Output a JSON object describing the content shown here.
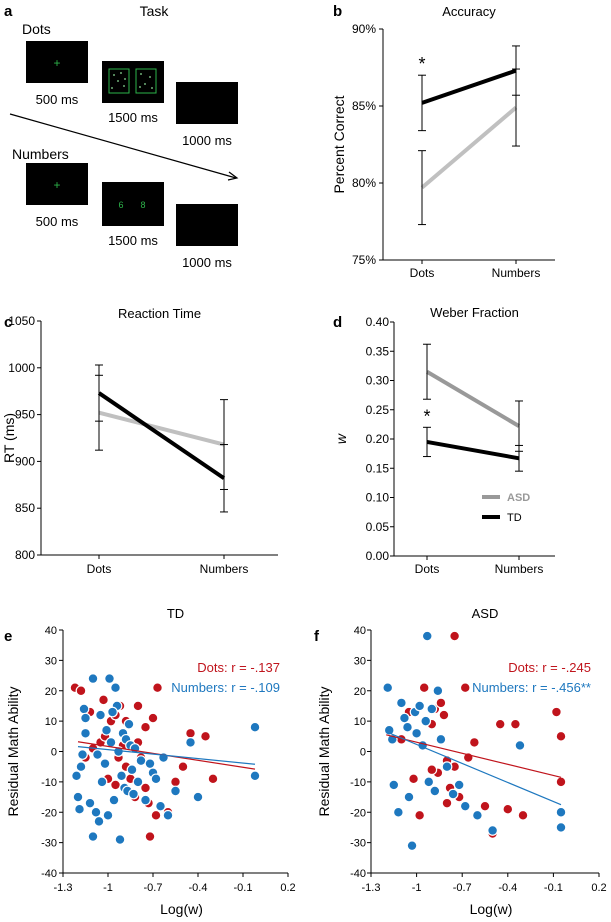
{
  "colors": {
    "td": "#000000",
    "asd": "#c0c0c0",
    "dots": "#c0141c",
    "numbers": "#1e78bf",
    "screen": "#000000",
    "stim": "#2db34a"
  },
  "panel_a": {
    "letter": "a",
    "title": "Task",
    "dots_label": "Dots",
    "numbers_label": "Numbers",
    "durations": [
      "500 ms",
      "1500 ms",
      "1000 ms"
    ],
    "fixation": "+",
    "number_stimulus": [
      "6",
      "8"
    ]
  },
  "chart_data": [
    {
      "id": "b",
      "letter": "b",
      "type": "line",
      "title": "Accuracy",
      "ylabel": "Percent Correct",
      "categories": [
        "Dots",
        "Numbers"
      ],
      "ylim": [
        75,
        90
      ],
      "yticks": [
        "75%",
        "80%",
        "85%",
        "90%"
      ],
      "series": [
        {
          "name": "TD",
          "color": "#000000",
          "values": [
            85.2,
            87.3
          ],
          "err": [
            1.8,
            1.6
          ]
        },
        {
          "name": "ASD",
          "color": "#c0c0c0",
          "values": [
            79.7,
            84.9
          ],
          "err": [
            2.4,
            2.5
          ]
        }
      ],
      "annotation": "*"
    },
    {
      "id": "c",
      "letter": "c",
      "type": "line",
      "title": "Reaction Time",
      "ylabel": "RT (ms)",
      "categories": [
        "Dots",
        "Numbers"
      ],
      "ylim": [
        800,
        1050
      ],
      "yticks": [
        "800",
        "850",
        "900",
        "950",
        "1000",
        "1050"
      ],
      "series": [
        {
          "name": "ASD",
          "color": "#c0c0c0",
          "values": [
            952,
            918
          ],
          "err": [
            40,
            48
          ]
        },
        {
          "name": "TD",
          "color": "#000000",
          "values": [
            973,
            882
          ],
          "err": [
            30,
            36
          ]
        }
      ]
    },
    {
      "id": "d",
      "letter": "d",
      "type": "line",
      "title": "Weber Fraction",
      "ylabel": "w",
      "categories": [
        "Dots",
        "Numbers"
      ],
      "ylim": [
        0,
        0.4
      ],
      "yticks": [
        "0.00",
        "0.05",
        "0.10",
        "0.15",
        "0.20",
        "0.25",
        "0.30",
        "0.35",
        "0.40"
      ],
      "series": [
        {
          "name": "ASD",
          "color": "#999999",
          "values": [
            0.315,
            0.222
          ],
          "err": [
            0.047,
            0.043
          ]
        },
        {
          "name": "TD",
          "color": "#000000",
          "values": [
            0.195,
            0.167
          ],
          "err": [
            0.025,
            0.022
          ]
        }
      ],
      "annotation": "*",
      "legend": [
        "ASD",
        "TD"
      ]
    },
    {
      "id": "e",
      "letter": "e",
      "type": "scatter",
      "title": "TD",
      "xlabel": "Log(w)",
      "ylabel": "Residual Math Ability",
      "xlim": [
        -1.3,
        0.2
      ],
      "ylim": [
        -40,
        40
      ],
      "xticks": [
        "-1.3",
        "-1",
        "-0.7",
        "-0.4",
        "-0.1",
        "0.2"
      ],
      "yticks": [
        "-40",
        "-30",
        "-20",
        "-10",
        "0",
        "10",
        "20",
        "30",
        "40"
      ],
      "stat_dots": "Dots: r = -.137",
      "stat_numbers": "Numbers: r = -.109",
      "fit_dots": [
        [
          -1.2,
          3.2
        ],
        [
          -0.02,
          -5.8
        ]
      ],
      "fit_numbers": [
        [
          -1.2,
          1.6
        ],
        [
          -0.02,
          -4.2
        ]
      ],
      "dots": [
        [
          -1.22,
          21
        ],
        [
          -1.18,
          20
        ],
        [
          -1.12,
          13
        ],
        [
          -1.15,
          -2
        ],
        [
          -1.1,
          1
        ],
        [
          -1.05,
          3
        ],
        [
          -1.02,
          5
        ],
        [
          -1.0,
          -9
        ],
        [
          -0.98,
          10
        ],
        [
          -0.95,
          12
        ],
        [
          -0.93,
          -2
        ],
        [
          -0.9,
          2
        ],
        [
          -0.88,
          10
        ],
        [
          -0.85,
          -9
        ],
        [
          -0.82,
          -15
        ],
        [
          -0.8,
          15
        ],
        [
          -0.78,
          -2
        ],
        [
          -0.75,
          8
        ],
        [
          -0.73,
          -17
        ],
        [
          -0.7,
          11
        ],
        [
          -0.68,
          -21
        ],
        [
          -0.67,
          21
        ],
        [
          -0.72,
          -28
        ],
        [
          -0.6,
          -20
        ],
        [
          -0.55,
          -10
        ],
        [
          -0.5,
          -5
        ],
        [
          -0.45,
          6
        ],
        [
          -0.35,
          5
        ],
        [
          -0.3,
          -9
        ],
        [
          -1.03,
          17
        ],
        [
          -0.95,
          -11
        ],
        [
          -0.88,
          -5
        ],
        [
          -0.8,
          3
        ],
        [
          -0.75,
          -12
        ],
        [
          -0.92,
          15
        ]
      ],
      "numbers": [
        [
          -1.21,
          -8
        ],
        [
          -1.2,
          -15
        ],
        [
          -1.19,
          -19
        ],
        [
          -1.18,
          -5
        ],
        [
          -1.17,
          -1
        ],
        [
          -1.16,
          14
        ],
        [
          -1.15,
          6
        ],
        [
          -1.15,
          11
        ],
        [
          -1.12,
          -17
        ],
        [
          -1.1,
          -28
        ],
        [
          -1.08,
          -20
        ],
        [
          -1.07,
          -1
        ],
        [
          -1.06,
          -23
        ],
        [
          -1.05,
          12
        ],
        [
          -1.04,
          -10
        ],
        [
          -1.02,
          -4
        ],
        [
          -1.01,
          7
        ],
        [
          -1.0,
          -21
        ],
        [
          -0.99,
          24
        ],
        [
          -0.98,
          3
        ],
        [
          -0.96,
          -16
        ],
        [
          -0.95,
          21
        ],
        [
          -0.94,
          15
        ],
        [
          -0.93,
          0
        ],
        [
          -0.92,
          -29
        ],
        [
          -0.91,
          -8
        ],
        [
          -0.9,
          6
        ],
        [
          -0.89,
          -12
        ],
        [
          -0.88,
          4
        ],
        [
          -0.87,
          -13
        ],
        [
          -0.86,
          9
        ],
        [
          -0.85,
          2
        ],
        [
          -0.84,
          -6
        ],
        [
          -0.83,
          -14
        ],
        [
          -0.82,
          1
        ],
        [
          -0.8,
          -10
        ],
        [
          -0.78,
          -3
        ],
        [
          -0.75,
          -16
        ],
        [
          -0.72,
          -4
        ],
        [
          -0.7,
          -7
        ],
        [
          -0.68,
          -9
        ],
        [
          -0.65,
          -18
        ],
        [
          -0.6,
          -21
        ],
        [
          -0.55,
          -13
        ],
        [
          -0.45,
          3
        ],
        [
          -0.4,
          -15
        ],
        [
          -0.02,
          8
        ],
        [
          -0.02,
          -8
        ],
        [
          -1.1,
          24
        ],
        [
          -0.97,
          13
        ],
        [
          -0.63,
          -2
        ]
      ]
    },
    {
      "id": "f",
      "letter": "f",
      "type": "scatter",
      "title": "ASD",
      "xlabel": "Log(w)",
      "ylabel": "Residual Math Ability",
      "xlim": [
        -1.3,
        0.2
      ],
      "ylim": [
        -40,
        40
      ],
      "xticks": [
        "-1.3",
        "-1",
        "-0.7",
        "-0.4",
        "-0.1",
        "0.2"
      ],
      "yticks": [
        "-40",
        "-30",
        "-20",
        "-10",
        "0",
        "10",
        "20",
        "30",
        "40"
      ],
      "stat_dots": "Dots: r = -.245",
      "stat_numbers": "Numbers: r = -.456**",
      "fit_dots": [
        [
          -1.2,
          5.5
        ],
        [
          -0.05,
          -8.5
        ]
      ],
      "fit_numbers": [
        [
          -1.2,
          6.5
        ],
        [
          -0.05,
          -17.5
        ]
      ],
      "dots": [
        [
          -0.75,
          38
        ],
        [
          -1.1,
          4
        ],
        [
          -1.05,
          13
        ],
        [
          -1.02,
          -9
        ],
        [
          -0.98,
          -21
        ],
        [
          -0.95,
          21
        ],
        [
          -0.9,
          9
        ],
        [
          -0.88,
          14
        ],
        [
          -0.86,
          -7
        ],
        [
          -0.84,
          16
        ],
        [
          -0.82,
          12
        ],
        [
          -0.8,
          -3
        ],
        [
          -0.78,
          -12
        ],
        [
          -0.75,
          -5
        ],
        [
          -0.72,
          -15
        ],
        [
          -0.68,
          21
        ],
        [
          -0.66,
          -2
        ],
        [
          -0.62,
          3
        ],
        [
          -0.55,
          -18
        ],
        [
          -0.5,
          -27
        ],
        [
          -0.45,
          9
        ],
        [
          -0.4,
          -19
        ],
        [
          -0.35,
          9
        ],
        [
          -0.3,
          -21
        ],
        [
          -0.08,
          13
        ],
        [
          -0.05,
          5
        ],
        [
          -0.05,
          -10
        ],
        [
          -0.9,
          -6
        ],
        [
          -0.8,
          -17
        ]
      ],
      "numbers": [
        [
          -0.93,
          38
        ],
        [
          -1.19,
          21
        ],
        [
          -1.18,
          7
        ],
        [
          -1.15,
          -11
        ],
        [
          -1.12,
          -20
        ],
        [
          -1.1,
          16
        ],
        [
          -1.08,
          11
        ],
        [
          -1.06,
          8
        ],
        [
          -1.05,
          -15
        ],
        [
          -1.03,
          -31
        ],
        [
          -1.01,
          13
        ],
        [
          -1.0,
          6
        ],
        [
          -0.98,
          15
        ],
        [
          -0.96,
          2
        ],
        [
          -0.94,
          10
        ],
        [
          -0.92,
          -10
        ],
        [
          -0.9,
          14
        ],
        [
          -0.88,
          -13
        ],
        [
          -0.86,
          20
        ],
        [
          -0.84,
          4
        ],
        [
          -0.8,
          -5
        ],
        [
          -0.76,
          -14
        ],
        [
          -0.72,
          -11
        ],
        [
          -0.68,
          -18
        ],
        [
          -0.6,
          -21
        ],
        [
          -0.5,
          -26
        ],
        [
          -0.32,
          2
        ],
        [
          -0.05,
          -20
        ],
        [
          -0.05,
          -25
        ],
        [
          -1.16,
          4
        ]
      ]
    }
  ]
}
